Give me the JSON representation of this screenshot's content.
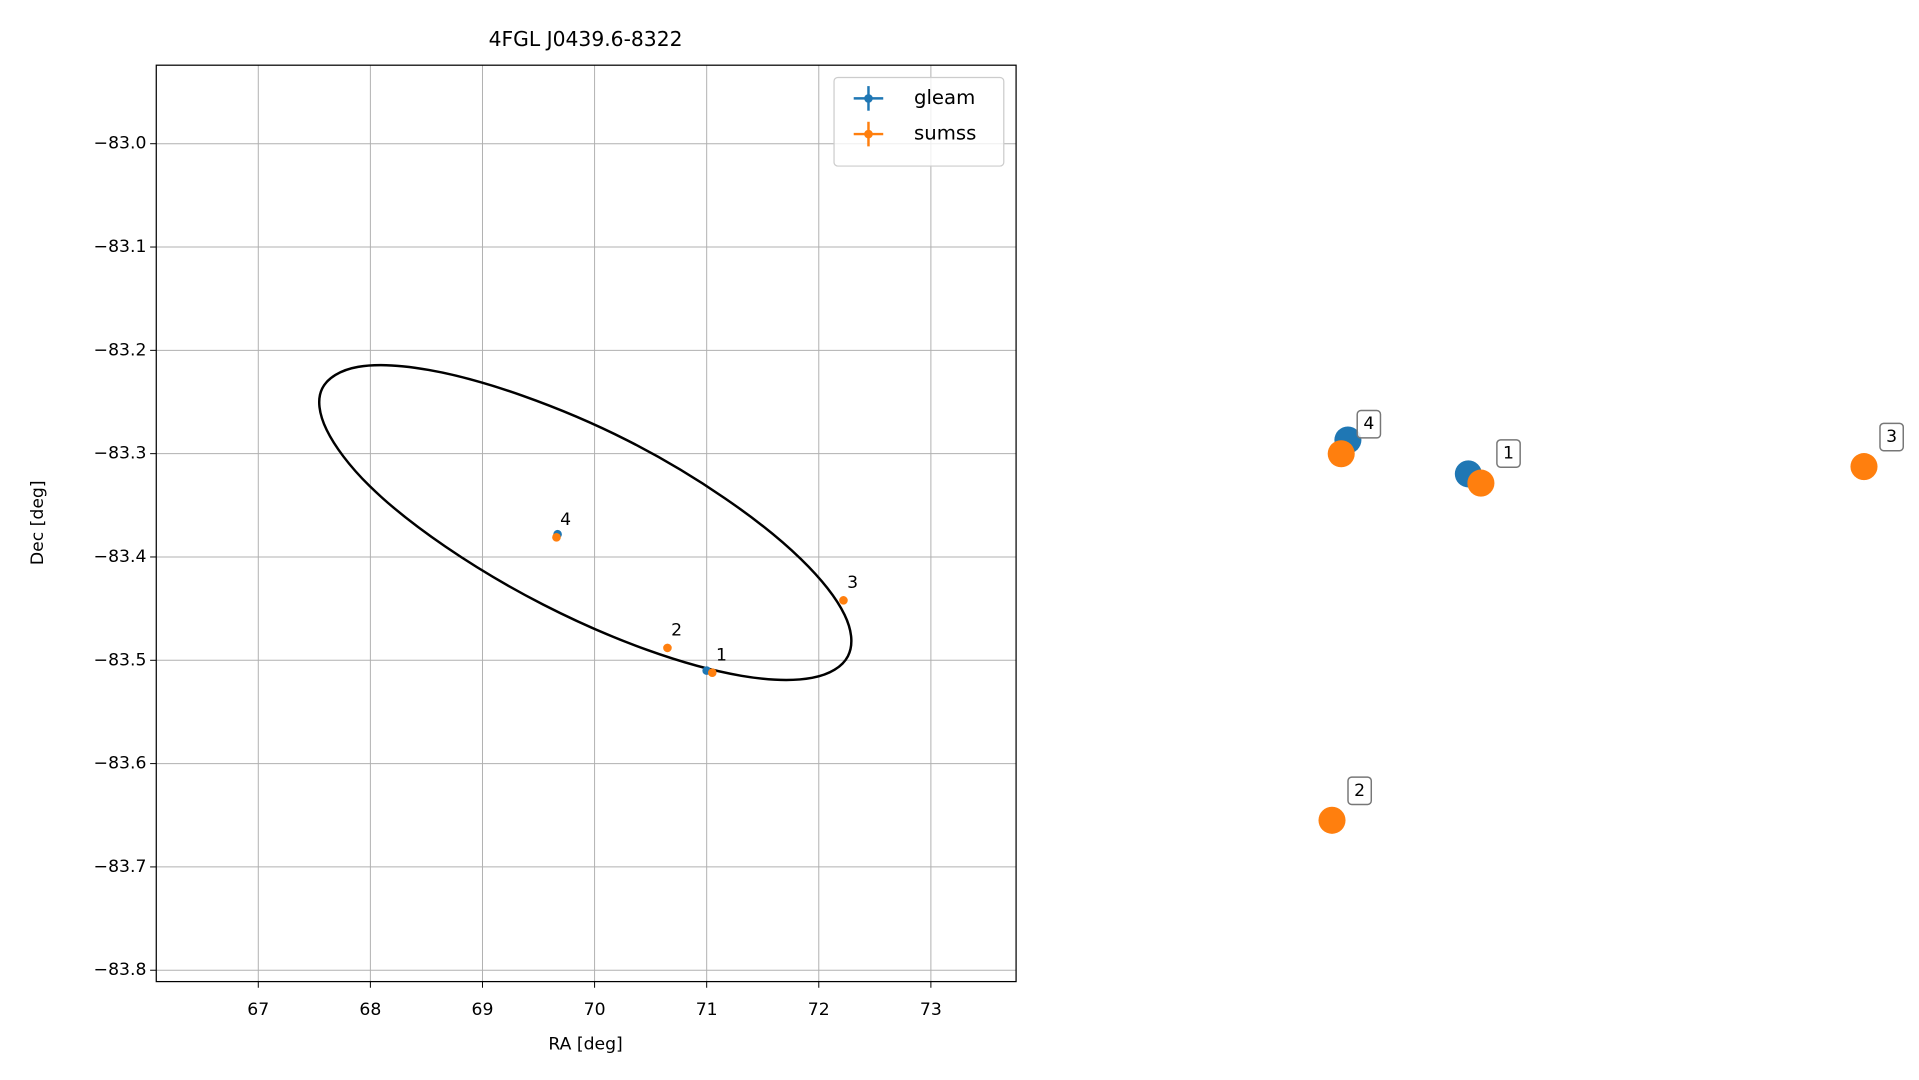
{
  "chart_data": [
    {
      "type": "scatter",
      "title": "4FGL J0439.6-8322",
      "xlabel": "RA [deg]",
      "ylabel": "Dec [deg]",
      "xlim": [
        66.09,
        73.76
      ],
      "ylim": [
        -83.811,
        -82.924
      ],
      "xticks": [
        67,
        68,
        69,
        70,
        71,
        72,
        73
      ],
      "yticks": [
        {
          "value": -83.0,
          "label": "−83.0"
        },
        {
          "value": -83.1,
          "label": "−83.1"
        },
        {
          "value": -83.2,
          "label": "−83.2"
        },
        {
          "value": -83.3,
          "label": "−83.3"
        },
        {
          "value": -83.4,
          "label": "−83.4"
        },
        {
          "value": -83.5,
          "label": "−83.5"
        },
        {
          "value": -83.6,
          "label": "−83.6"
        },
        {
          "value": -83.7,
          "label": "−83.7"
        },
        {
          "value": -83.8,
          "label": "−83.8"
        }
      ],
      "grid": true,
      "legend": "upper right",
      "series": [
        {
          "name": "gleam",
          "color": "#1f77b4",
          "x": [
            71.0,
            69.67
          ],
          "y": [
            -83.51,
            -83.378
          ]
        },
        {
          "name": "sumss",
          "color": "#ff7f0e",
          "x": [
            71.05,
            70.65,
            72.22,
            69.66
          ],
          "y": [
            -83.512,
            -83.488,
            -83.442,
            -83.381
          ],
          "labels": [
            "1",
            "2",
            "3",
            "4"
          ]
        }
      ],
      "ellipse": {
        "color": "#000000",
        "x": [
          72.26,
          71.94,
          71.31,
          70.47,
          69.54,
          68.67,
          67.99,
          67.61,
          67.57,
          67.89,
          68.52,
          69.36,
          70.29,
          71.16,
          71.84,
          72.23
        ],
        "y": [
          -83.496,
          -83.517,
          -83.515,
          -83.49,
          -83.446,
          -83.39,
          -83.331,
          -83.277,
          -83.237,
          -83.216,
          -83.219,
          -83.244,
          -83.287,
          -83.343,
          -83.402,
          -83.456
        ]
      }
    },
    {
      "type": "scatter",
      "axis": false,
      "xlim": [
        0,
        100
      ],
      "ylim": [
        0,
        100
      ],
      "series": [
        {
          "name": "gleam",
          "color": "#1f77b4",
          "x": [
            47.6,
            33.2
          ],
          "y": [
            55.4,
            59.1
          ]
        },
        {
          "name": "sumss",
          "color": "#ff7f0e",
          "x": [
            49.1,
            31.3,
            94.9,
            32.4
          ],
          "y": [
            54.4,
            17.6,
            56.2,
            57.6
          ],
          "labels": [
            "1",
            "2",
            "3",
            "4"
          ]
        }
      ]
    }
  ]
}
